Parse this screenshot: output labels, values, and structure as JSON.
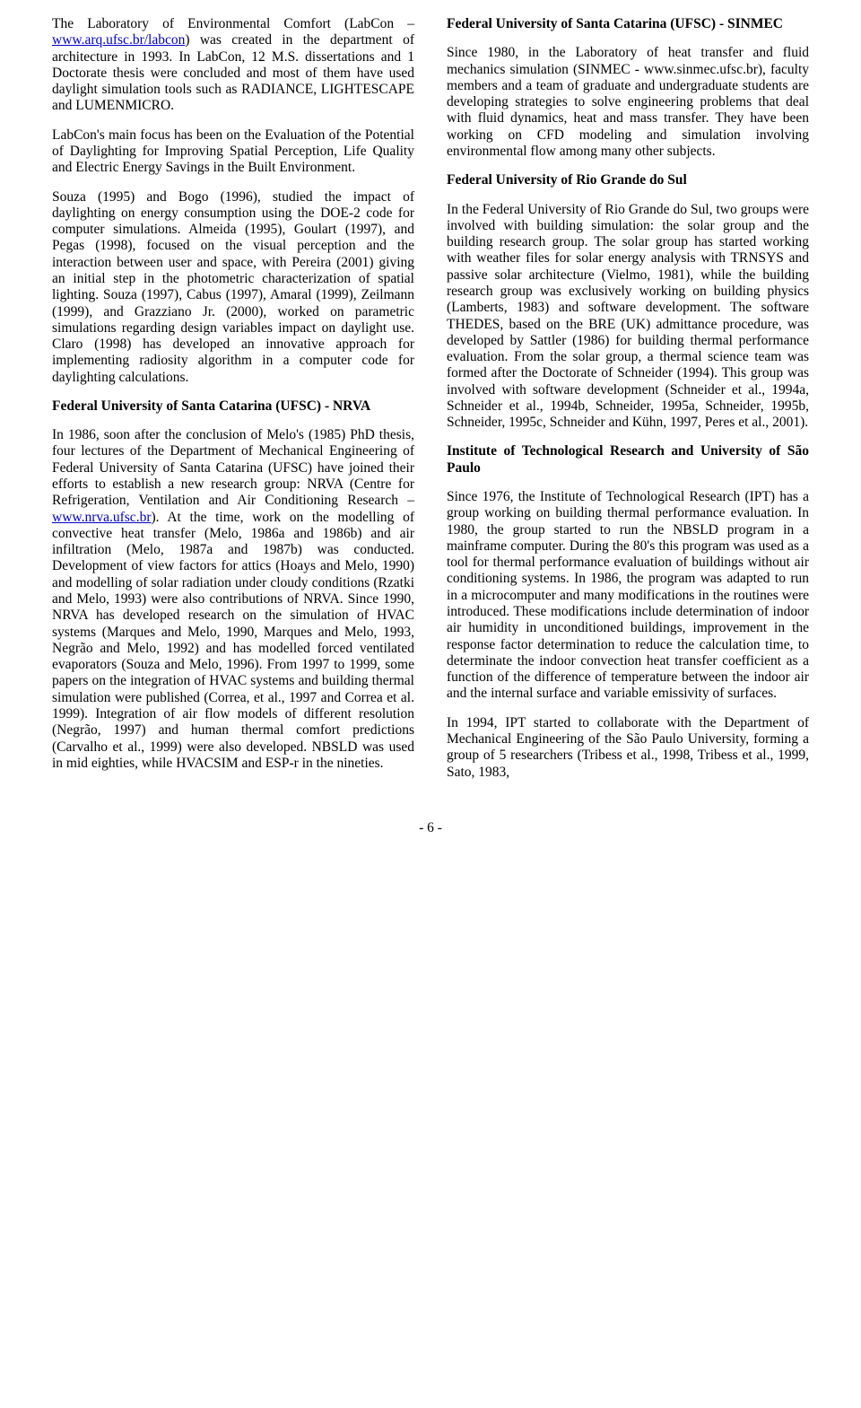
{
  "left": {
    "p1_a": "The Laboratory of Environmental Comfort (LabCon – ",
    "p1_link": "www.arq.ufsc.br/labcon",
    "p1_b": ") was created in the department of architecture in 1993. In LabCon, 12 M.S. dissertations and 1 Doctorate thesis were concluded and most of them have used daylight simulation tools such as RADIANCE, LIGHTESCAPE and LUMENMICRO.",
    "p2": "LabCon's main focus has been on the Evaluation of the Potential of Daylighting for Improving Spatial Perception, Life Quality and Electric Energy Savings in the Built Environment.",
    "p3": "Souza (1995) and Bogo (1996), studied the impact of daylighting on energy consumption using the DOE-2 code for computer simulations. Almeida (1995), Goulart (1997), and Pegas (1998), focused on the visual perception and the interaction between user and space, with Pereira (2001) giving an initial step in the photometric characterization of spatial lighting. Souza (1997), Cabus (1997), Amaral (1999), Zeilmann (1999), and Grazziano Jr. (2000), worked on parametric simulations regarding design variables impact on daylight use. Claro (1998) has developed an innovative approach for implementing radiosity algorithm in a computer code for daylighting calculations.",
    "h1": "Federal University of Santa Catarina (UFSC) - NRVA",
    "p4_a": "In 1986, soon after the conclusion of Melo's (1985) PhD thesis, four lectures of the Department of Mechanical Engineering of Federal University of Santa Catarina (UFSC) have joined their efforts to establish a new research group: NRVA (Centre for Refrigeration, Ventilation and Air Conditioning Research – ",
    "p4_link": "www.nrva.ufsc.br",
    "p4_b": "). At the time, work on the modelling of convective heat transfer (Melo, 1986a and 1986b) and air infiltration (Melo, 1987a and 1987b) was conducted. Development of view factors for attics (Hoays and Melo, 1990) and modelling of solar radiation under cloudy conditions (Rzatki and Melo, 1993) were also contributions of NRVA. Since 1990, NRVA has developed research on the simulation of HVAC systems (Marques and Melo, 1990, Marques and Melo, 1993, Negrão and Melo, 1992) and has modelled forced ventilated evaporators (Souza and Melo, 1996). From 1997 to 1999, some papers on the integration of HVAC systems and building thermal simulation were published (Correa, et al., 1997 and Correa et al. 1999). Integration of air flow models of different resolution (Negrão, 1997) and human thermal comfort predictions (Carvalho et al., 1999) were also developed. NBSLD was used in mid eighties, while HVACSIM and ESP-r in the nineties."
  },
  "right": {
    "h1": "Federal University of Santa Catarina (UFSC) - SINMEC",
    "p1": "Since 1980, in the Laboratory of heat transfer and fluid mechanics simulation (SINMEC - www.sinmec.ufsc.br), faculty members and a team of graduate and undergraduate students are developing strategies to solve engineering problems that deal with fluid dynamics, heat and mass transfer. They have been working on CFD modeling and simulation involving environmental flow among many other subjects.",
    "h2": "Federal University of Rio Grande do Sul",
    "p2": "In the Federal University of Rio Grande do Sul, two groups were involved with building simulation: the solar group and the building research group. The solar group has started working with weather files for solar energy analysis with TRNSYS and passive solar architecture (Vielmo, 1981), while the building research group was exclusively working on building physics (Lamberts, 1983) and software development. The software THEDES, based on the BRE (UK) admittance procedure, was developed by Sattler (1986) for building thermal performance evaluation. From the solar group, a thermal science team was formed after the Doctorate of Schneider (1994). This group was involved with software development (Schneider et al., 1994a, Schneider et al., 1994b, Schneider, 1995a, Schneider, 1995b, Schneider, 1995c, Schneider and Kühn, 1997, Peres et al., 2001).",
    "h3": "Institute of Technological Research and University of São Paulo",
    "p3": "Since 1976, the Institute of Technological Research (IPT) has a group working on building thermal performance evaluation. In 1980, the group started to run the NBSLD program in a mainframe computer. During the 80's this program was used as a tool for thermal performance evaluation of buildings without air conditioning systems. In 1986, the program was adapted to run in a microcomputer and many modifications in the routines were introduced. These modifications include determination of indoor air humidity in unconditioned buildings, improvement in the response factor determination to reduce the calculation time, to determinate the indoor convection heat transfer coefficient as a function of the difference of temperature between the indoor air and the internal surface and variable emissivity of surfaces.",
    "p4": "In 1994, IPT started to collaborate with the Department of Mechanical Engineering of the São Paulo University, forming a group of 5 researchers (Tribess et al., 1998, Tribess et al., 1999, Sato, 1983,"
  },
  "pagenum": "- 6 -"
}
